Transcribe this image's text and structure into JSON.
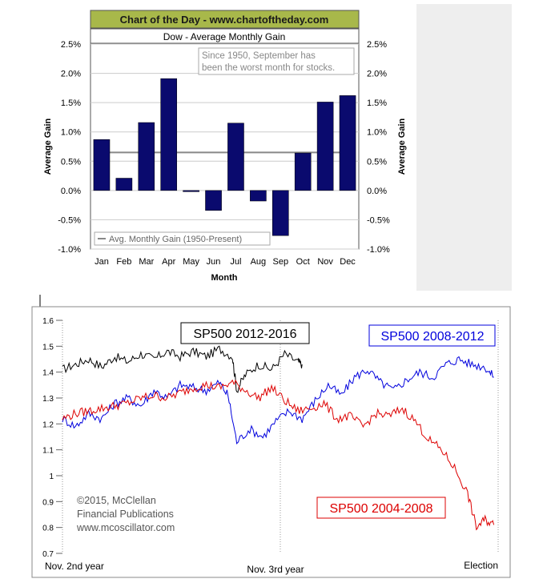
{
  "chart_data": [
    {
      "type": "bar",
      "banner": "Chart of the Day - www.chartoftheday.com",
      "title": "Dow - Average Monthly Gain",
      "xlabel": "Month",
      "ylabel": "Average Gain",
      "ylim": [
        -1.0,
        2.5
      ],
      "yticks": [
        2.5,
        2.0,
        1.5,
        1.0,
        0.5,
        0.0,
        -0.5,
        -1.0
      ],
      "ytick_labels": [
        "2.5%",
        "2.0%",
        "1.5%",
        "1.0%",
        "0.5%",
        "0.0%",
        "-0.5%",
        "-1.0%"
      ],
      "categories": [
        "Jan",
        "Feb",
        "Mar",
        "Apr",
        "May",
        "Jun",
        "Jul",
        "Aug",
        "Sep",
        "Oct",
        "Nov",
        "Dec"
      ],
      "values": [
        0.87,
        0.21,
        1.16,
        1.91,
        -0.02,
        -0.34,
        1.15,
        -0.18,
        -0.77,
        0.64,
        1.51,
        1.62
      ],
      "average_line": 0.65,
      "annotation_lines": [
        "Since 1950, September has",
        "been the worst month for stocks."
      ],
      "legend_label": "Avg. Monthly Gain (1950-Present)",
      "bar_color": "#0a0a6e",
      "avg_line_color": "#888888",
      "banner_color": "#a8b84a"
    },
    {
      "type": "line",
      "ylim": [
        0.7,
        1.6
      ],
      "yticks": [
        0.7,
        0.8,
        0.9,
        1.0,
        1.1,
        1.2,
        1.3,
        1.4,
        1.5,
        1.6
      ],
      "ytick_labels": [
        "0.7",
        "0.8",
        "0.9",
        "1",
        "1.1",
        "1.2",
        "1.3",
        "1.4",
        "1.5",
        "1.6"
      ],
      "x_labels": [
        "Nov. 2nd year",
        "Nov. 3rd year",
        "Election"
      ],
      "x_positions": [
        0,
        0.5,
        1.0
      ],
      "credit_lines": [
        "©2015, McClellan",
        "Financial Publications",
        "www.mcoscillator.com"
      ],
      "series": [
        {
          "name": "SP500 2012-2016",
          "color": "#000000",
          "x": [
            0,
            0.03,
            0.06,
            0.09,
            0.12,
            0.15,
            0.18,
            0.21,
            0.24,
            0.27,
            0.3,
            0.33,
            0.36,
            0.39,
            0.4,
            0.42,
            0.45,
            0.48,
            0.51,
            0.54,
            0.55
          ],
          "y": [
            1.41,
            1.43,
            1.45,
            1.42,
            1.46,
            1.44,
            1.47,
            1.45,
            1.48,
            1.46,
            1.48,
            1.46,
            1.49,
            1.46,
            1.33,
            1.39,
            1.43,
            1.41,
            1.47,
            1.44,
            1.43
          ]
        },
        {
          "name": "SP500 2008-2012",
          "color": "#0000dd",
          "x": [
            0,
            0.03,
            0.06,
            0.09,
            0.12,
            0.15,
            0.18,
            0.21,
            0.24,
            0.27,
            0.3,
            0.33,
            0.36,
            0.38,
            0.4,
            0.43,
            0.46,
            0.49,
            0.52,
            0.55,
            0.58,
            0.61,
            0.64,
            0.67,
            0.7,
            0.73,
            0.76,
            0.79,
            0.82,
            0.85,
            0.88,
            0.91,
            0.94,
            0.97,
            0.99
          ],
          "y": [
            1.22,
            1.19,
            1.24,
            1.22,
            1.28,
            1.3,
            1.27,
            1.33,
            1.3,
            1.35,
            1.34,
            1.33,
            1.36,
            1.31,
            1.13,
            1.18,
            1.15,
            1.21,
            1.25,
            1.22,
            1.29,
            1.35,
            1.31,
            1.38,
            1.41,
            1.36,
            1.33,
            1.37,
            1.4,
            1.38,
            1.43,
            1.45,
            1.43,
            1.42,
            1.38
          ]
        },
        {
          "name": "SP500 2004-2008",
          "color": "#dd0000",
          "x": [
            0,
            0.03,
            0.06,
            0.09,
            0.12,
            0.15,
            0.18,
            0.21,
            0.24,
            0.27,
            0.3,
            0.33,
            0.36,
            0.39,
            0.42,
            0.45,
            0.48,
            0.51,
            0.54,
            0.57,
            0.6,
            0.63,
            0.66,
            0.69,
            0.72,
            0.75,
            0.78,
            0.81,
            0.84,
            0.87,
            0.9,
            0.93,
            0.95,
            0.97,
            0.99
          ],
          "y": [
            1.22,
            1.24,
            1.25,
            1.26,
            1.27,
            1.28,
            1.3,
            1.31,
            1.3,
            1.32,
            1.34,
            1.35,
            1.34,
            1.36,
            1.33,
            1.3,
            1.34,
            1.29,
            1.25,
            1.26,
            1.28,
            1.22,
            1.23,
            1.19,
            1.24,
            1.23,
            1.26,
            1.21,
            1.14,
            1.1,
            1.03,
            0.93,
            0.8,
            0.83,
            0.81
          ]
        }
      ]
    }
  ]
}
